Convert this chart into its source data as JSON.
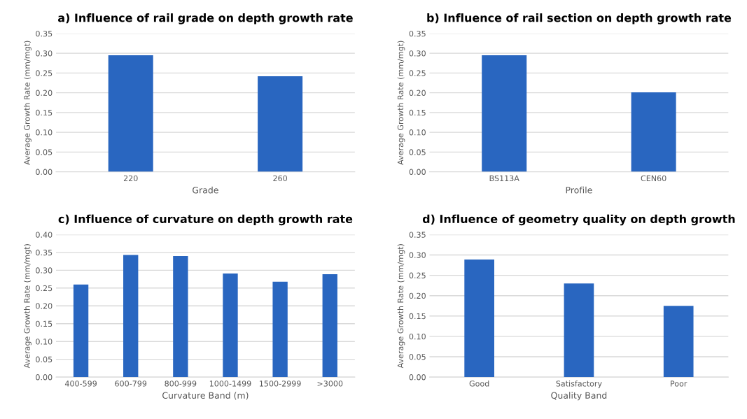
{
  "chart_data": [
    {
      "type": "bar",
      "title": "a) Influence of rail grade on depth growth rate",
      "xlabel": "Grade",
      "ylabel": "Average Growth Rate (mm/mgt)",
      "categories": [
        "220",
        "260"
      ],
      "values": [
        0.295,
        0.242
      ],
      "color": "#2966c0",
      "ylim": [
        0,
        0.35
      ],
      "yticks": [
        {
          "value": 0,
          "label": "0.00"
        },
        {
          "value": 0.05,
          "label": "0.05"
        },
        {
          "value": 0.1,
          "label": "0.10"
        },
        {
          "value": 0.15,
          "label": "0.15"
        },
        {
          "value": 0.2,
          "label": "0.20"
        },
        {
          "value": 0.25,
          "label": "0.25"
        },
        {
          "value": 0.3,
          "label": "0.30"
        },
        {
          "value": 0.35,
          "label": "0.35"
        }
      ],
      "grid": "y"
    },
    {
      "type": "bar",
      "title": "b) Influence of rail section on depth growth rate",
      "xlabel": "Profile",
      "ylabel": "Average Growth Rate (mm/mgt)",
      "categories": [
        "BS113A",
        "CEN60"
      ],
      "values": [
        0.295,
        0.201
      ],
      "color": "#2966c0",
      "ylim": [
        0,
        0.35
      ],
      "yticks": [
        {
          "value": 0,
          "label": "0.00"
        },
        {
          "value": 0.05,
          "label": "0.05"
        },
        {
          "value": 0.1,
          "label": "0.10"
        },
        {
          "value": 0.15,
          "label": "0.15"
        },
        {
          "value": 0.2,
          "label": "0.20"
        },
        {
          "value": 0.25,
          "label": "0.25"
        },
        {
          "value": 0.3,
          "label": "0.30"
        },
        {
          "value": 0.35,
          "label": "0.35"
        }
      ],
      "grid": "y"
    },
    {
      "type": "bar",
      "title": "c) Influence of curvature on depth growth rate",
      "xlabel": "Curvature Band (m)",
      "ylabel": "Average Growth Rate (mm/mgt)",
      "categories": [
        "400-599",
        "600-799",
        "800-999",
        "1000-1499",
        "1500-2999",
        ">3000"
      ],
      "values": [
        0.26,
        0.343,
        0.34,
        0.291,
        0.268,
        0.289
      ],
      "color": "#2966c0",
      "ylim": [
        0,
        0.4
      ],
      "yticks": [
        {
          "value": 0,
          "label": "0.00"
        },
        {
          "value": 0.05,
          "label": "0.05"
        },
        {
          "value": 0.1,
          "label": "0.10"
        },
        {
          "value": 0.15,
          "label": "0.15"
        },
        {
          "value": 0.2,
          "label": "0.20"
        },
        {
          "value": 0.25,
          "label": "0.25"
        },
        {
          "value": 0.3,
          "label": "0.30"
        },
        {
          "value": 0.35,
          "label": "0.35"
        },
        {
          "value": 0.4,
          "label": "0.40"
        }
      ],
      "grid": "y"
    },
    {
      "type": "bar",
      "title": "d) Influence of geometry quality on depth growth",
      "xlabel": "Quality Band",
      "ylabel": "Average Growth Rate (mm/mgt)",
      "categories": [
        "Good",
        "Satisfactory",
        "Poor"
      ],
      "values": [
        0.289,
        0.23,
        0.175
      ],
      "color": "#2966c0",
      "ylim": [
        0,
        0.35
      ],
      "yticks": [
        {
          "value": 0,
          "label": "0.00"
        },
        {
          "value": 0.05,
          "label": "0.05"
        },
        {
          "value": 0.1,
          "label": "0.10"
        },
        {
          "value": 0.15,
          "label": "0.15"
        },
        {
          "value": 0.2,
          "label": "0.20"
        },
        {
          "value": 0.25,
          "label": "0.25"
        },
        {
          "value": 0.3,
          "label": "0.30"
        },
        {
          "value": 0.35,
          "label": "0.35"
        }
      ],
      "grid": "y"
    }
  ]
}
